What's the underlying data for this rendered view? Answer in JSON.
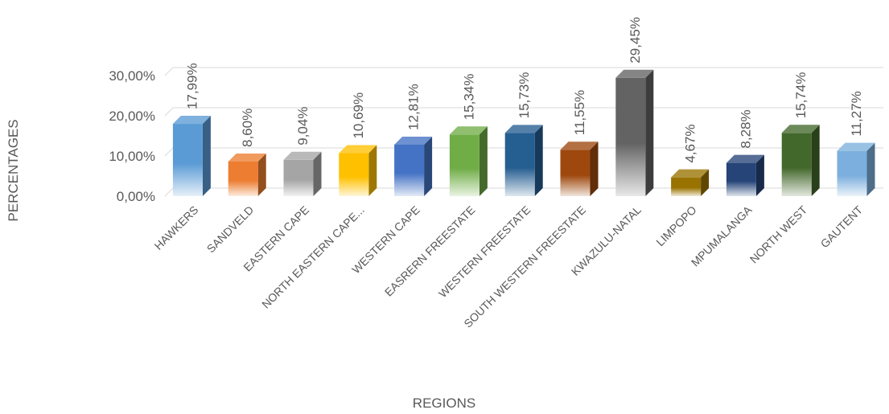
{
  "chart_data": {
    "type": "bar",
    "xlabel": "REGIONS",
    "ylabel": "PERCENTAGES",
    "ylim": [
      0,
      30
    ],
    "y_ticks": [
      "0,00%",
      "10,00%",
      "20,00%",
      "30,00%"
    ],
    "y_tick_values": [
      0,
      10,
      20,
      30
    ],
    "grid": true,
    "style": "3d-column",
    "categories": [
      "HAWKERS",
      "SANDVELD",
      "EASTERN CAPE",
      "NORTH EASTERN CAPE...",
      "WESTERN CAPE",
      "EASRERN FREESTATE",
      "WESTERN FREESTATE",
      "SOUTH WESTERN FREESTATE",
      "KWAZULU-NATAL",
      "LIMPOPO",
      "MPUMALANGA",
      "NORTH WEST",
      "GAUTENT"
    ],
    "values": [
      17.99,
      8.6,
      9.04,
      10.69,
      12.81,
      15.34,
      15.73,
      11.55,
      29.45,
      4.67,
      8.28,
      15.74,
      11.27
    ],
    "data_labels": [
      "17,99%",
      "8,60%",
      "9,04%",
      "10,69%",
      "12,81%",
      "15,34%",
      "15,73%",
      "11,55%",
      "29,45%",
      "4,67%",
      "8,28%",
      "15,74%",
      "11,27%"
    ],
    "colors": [
      "#5B9BD5",
      "#ED7D31",
      "#A5A5A5",
      "#FFC000",
      "#4472C4",
      "#70AD47",
      "#255E91",
      "#9E480E",
      "#636363",
      "#997300",
      "#264478",
      "#43682B",
      "#7CAFDD"
    ]
  }
}
